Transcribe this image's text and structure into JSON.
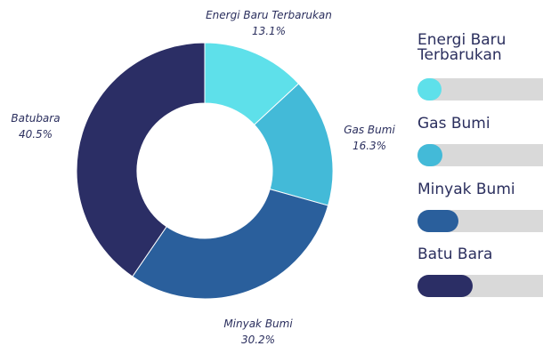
{
  "chart_data": {
    "type": "pie",
    "donut": true,
    "slices": [
      {
        "label": "Energi Baru Terbarukan",
        "value": 13.1,
        "display": "13.1%",
        "color": "#5ee0ea"
      },
      {
        "label": "Gas Bumi",
        "value": 16.3,
        "display": "16.3%",
        "color": "#43bad8"
      },
      {
        "label": "Minyak Bumi",
        "value": 30.2,
        "display": "30.2%",
        "color": "#2a5f9c"
      },
      {
        "label": "Batubara",
        "value": 40.5,
        "display": "40.5%",
        "color": "#2b2e65"
      }
    ],
    "legend": {
      "placement": "right",
      "items": [
        {
          "label": "Energi Baru\nTerbarukan",
          "color": "#5ee0ea"
        },
        {
          "label": "Gas Bumi",
          "color": "#43bad8"
        },
        {
          "label": "Minyak Bumi",
          "color": "#2a5f9c"
        },
        {
          "label": "Batu Bara",
          "color": "#2b2e65"
        }
      ]
    }
  }
}
